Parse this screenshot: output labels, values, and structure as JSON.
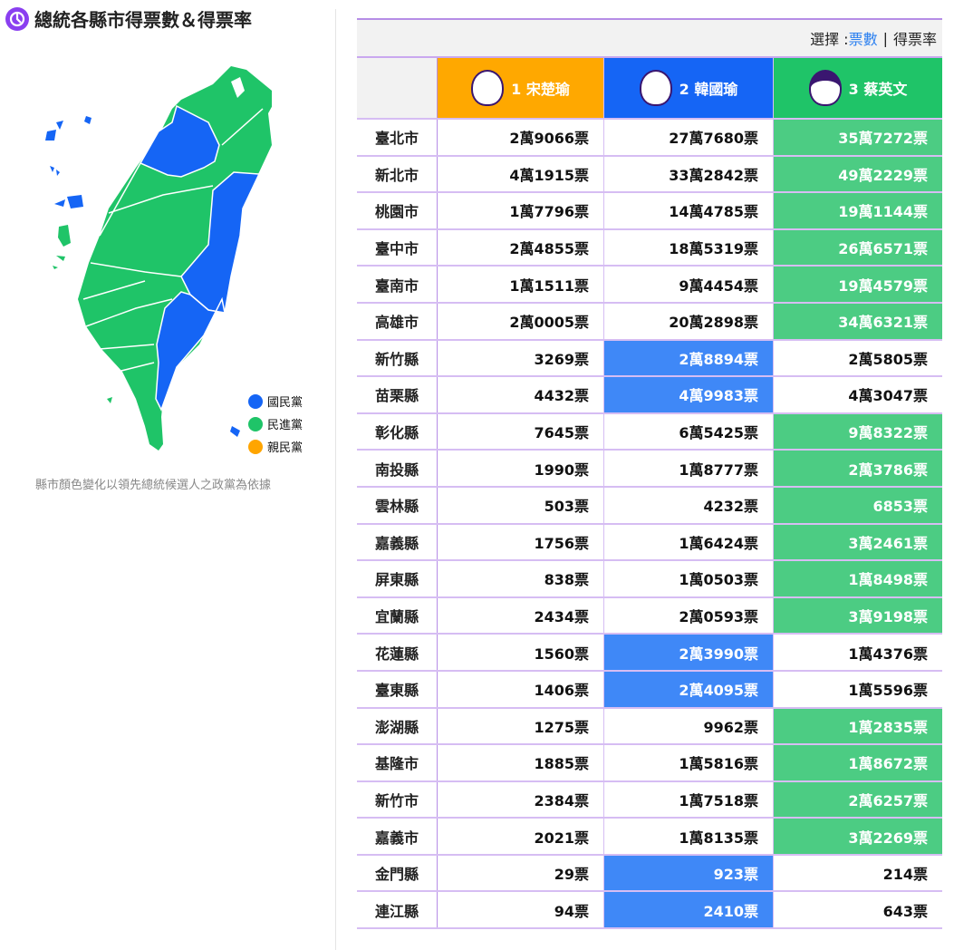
{
  "title": "總統各縣市得票數＆得票率",
  "legend": [
    {
      "label": "國民黨",
      "color": "#1565f5"
    },
    {
      "label": "民進黨",
      "color": "#1fc468"
    },
    {
      "label": "親民黨",
      "color": "#ffa500"
    }
  ],
  "note": "縣市顏色變化以領先總統候選人之政黨為依據",
  "selector": {
    "prefix": "選擇 : ",
    "option_votes": "票數",
    "divider": "|",
    "option_rate": "得票率",
    "selected": "票數"
  },
  "candidates": [
    {
      "label": "1 宋楚瑜",
      "color": "#ffa800"
    },
    {
      "label": "2 韓國瑜",
      "color": "#1565f5"
    },
    {
      "label": "3 蔡英文",
      "color": "#1fc468"
    }
  ],
  "rows": [
    {
      "city": "臺北市",
      "v": [
        "2萬9066票",
        "27萬7680票",
        "35萬7272票"
      ],
      "winner": 2
    },
    {
      "city": "新北市",
      "v": [
        "4萬1915票",
        "33萬2842票",
        "49萬2229票"
      ],
      "winner": 2
    },
    {
      "city": "桃園市",
      "v": [
        "1萬7796票",
        "14萬4785票",
        "19萬1144票"
      ],
      "winner": 2
    },
    {
      "city": "臺中市",
      "v": [
        "2萬4855票",
        "18萬5319票",
        "26萬6571票"
      ],
      "winner": 2
    },
    {
      "city": "臺南市",
      "v": [
        "1萬1511票",
        "9萬4454票",
        "19萬4579票"
      ],
      "winner": 2
    },
    {
      "city": "高雄市",
      "v": [
        "2萬0005票",
        "20萬2898票",
        "34萬6321票"
      ],
      "winner": 2
    },
    {
      "city": "新竹縣",
      "v": [
        "3269票",
        "2萬8894票",
        "2萬5805票"
      ],
      "winner": 1
    },
    {
      "city": "苗栗縣",
      "v": [
        "4432票",
        "4萬9983票",
        "4萬3047票"
      ],
      "winner": 1
    },
    {
      "city": "彰化縣",
      "v": [
        "7645票",
        "6萬5425票",
        "9萬8322票"
      ],
      "winner": 2
    },
    {
      "city": "南投縣",
      "v": [
        "1990票",
        "1萬8777票",
        "2萬3786票"
      ],
      "winner": 2
    },
    {
      "city": "雲林縣",
      "v": [
        "503票",
        "4232票",
        "6853票"
      ],
      "winner": 2
    },
    {
      "city": "嘉義縣",
      "v": [
        "1756票",
        "1萬6424票",
        "3萬2461票"
      ],
      "winner": 2
    },
    {
      "city": "屏東縣",
      "v": [
        "838票",
        "1萬0503票",
        "1萬8498票"
      ],
      "winner": 2
    },
    {
      "city": "宜蘭縣",
      "v": [
        "2434票",
        "2萬0593票",
        "3萬9198票"
      ],
      "winner": 2
    },
    {
      "city": "花蓮縣",
      "v": [
        "1560票",
        "2萬3990票",
        "1萬4376票"
      ],
      "winner": 1
    },
    {
      "city": "臺東縣",
      "v": [
        "1406票",
        "2萬4095票",
        "1萬5596票"
      ],
      "winner": 1
    },
    {
      "city": "澎湖縣",
      "v": [
        "1275票",
        "9962票",
        "1萬2835票"
      ],
      "winner": 2
    },
    {
      "city": "基隆市",
      "v": [
        "1885票",
        "1萬5816票",
        "1萬8672票"
      ],
      "winner": 2
    },
    {
      "city": "新竹市",
      "v": [
        "2384票",
        "1萬7518票",
        "2萬6257票"
      ],
      "winner": 2
    },
    {
      "city": "嘉義市",
      "v": [
        "2021票",
        "1萬8135票",
        "3萬2269票"
      ],
      "winner": 2
    },
    {
      "city": "金門縣",
      "v": [
        "29票",
        "923票",
        "214票"
      ],
      "winner": 1
    },
    {
      "city": "連江縣",
      "v": [
        "94票",
        "2410票",
        "643票"
      ],
      "winner": 1
    }
  ]
}
